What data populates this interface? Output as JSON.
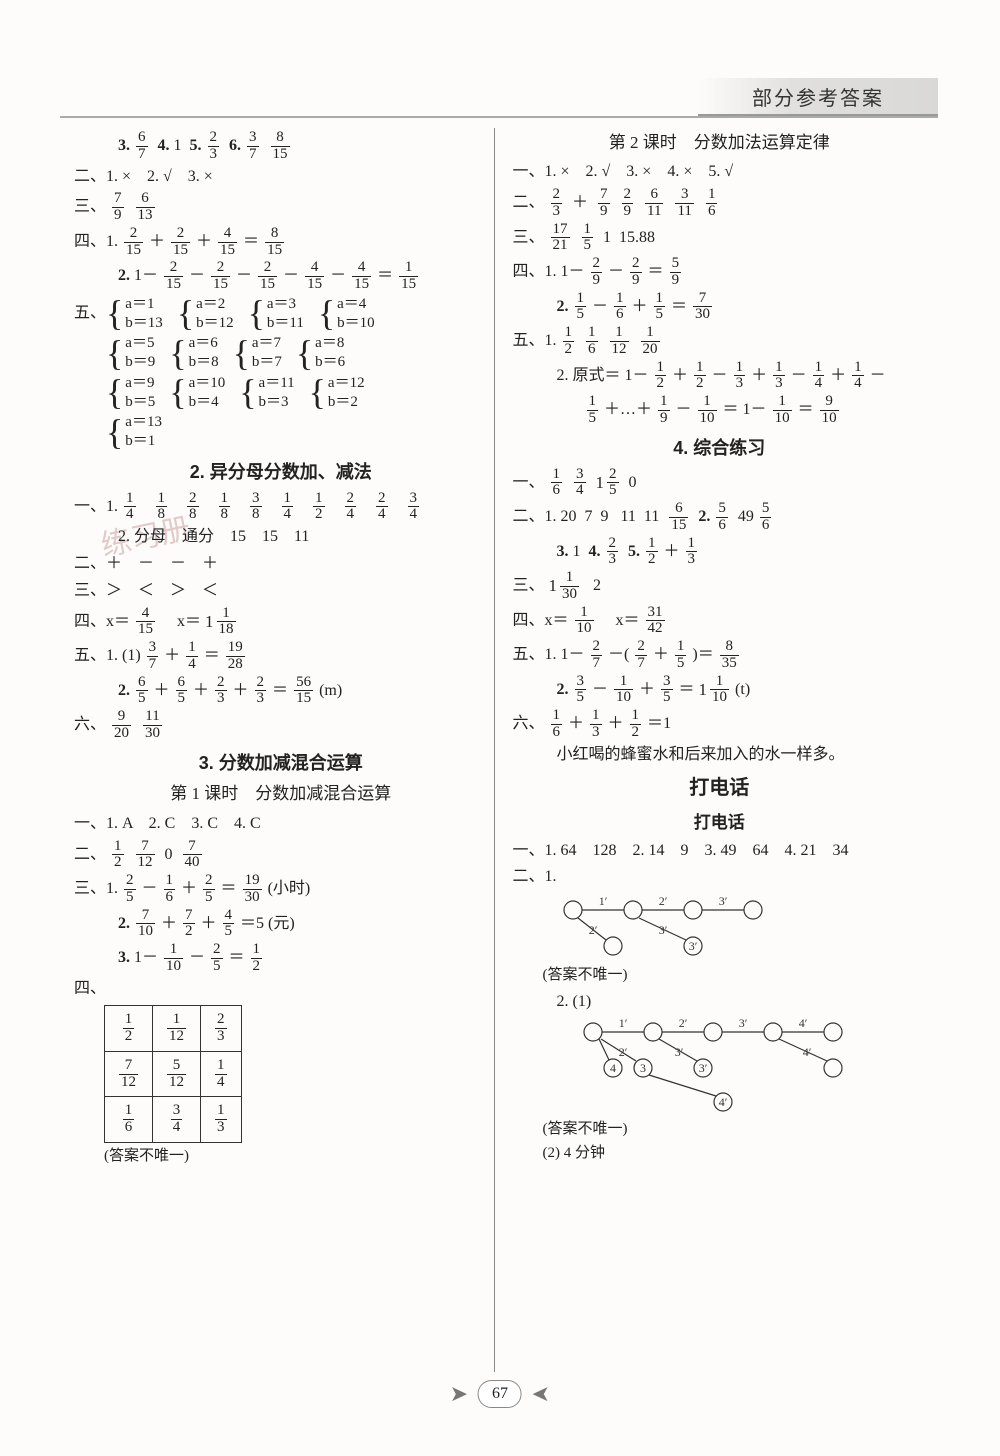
{
  "header_title": "部分参考答案",
  "page_number": "67",
  "watermark_text": "练习册",
  "left": {
    "l1_parts": [
      "3.",
      "6",
      "7",
      "4.",
      "1",
      "5.",
      "2",
      "3",
      "6.",
      "3",
      "7",
      "8",
      "15"
    ],
    "l2": "二、1. ×　2. √　3. ×",
    "l3": [
      "三、",
      "7",
      "9",
      "6",
      "13"
    ],
    "l4": [
      "四、1.",
      "2",
      "15",
      "＋",
      "2",
      "15",
      "＋",
      "4",
      "15",
      "＝",
      "8",
      "15"
    ],
    "l5": [
      "2.",
      "1",
      "－",
      "2",
      "15",
      "－",
      "2",
      "15",
      "－",
      "2",
      "15",
      "－",
      "4",
      "15",
      "－",
      "4",
      "15",
      "＝",
      "1",
      "15"
    ],
    "sec5_label": "五、",
    "pairs": [
      [
        [
          "a＝1",
          "b＝13"
        ],
        [
          "a＝2",
          "b＝12"
        ],
        [
          "a＝3",
          "b＝11"
        ],
        [
          "a＝4",
          "b＝10"
        ]
      ],
      [
        [
          "a＝5",
          "b＝9"
        ],
        [
          "a＝6",
          "b＝8"
        ],
        [
          "a＝7",
          "b＝7"
        ],
        [
          "a＝8",
          "b＝6"
        ]
      ],
      [
        [
          "a＝9",
          "b＝5"
        ],
        [
          "a＝10",
          "b＝4"
        ],
        [
          "a＝11",
          "b＝3"
        ],
        [
          "a＝12",
          "b＝2"
        ]
      ],
      [
        [
          "a＝13",
          "b＝1"
        ]
      ]
    ],
    "title2": "2. 异分母分数加、减法",
    "l2_1_fracs": [
      [
        "1",
        "4"
      ],
      [
        "1",
        "8"
      ],
      [
        "2",
        "8"
      ],
      [
        "1",
        "8"
      ],
      [
        "3",
        "8"
      ],
      [
        "1",
        "4"
      ],
      [
        "1",
        "2"
      ],
      [
        "2",
        "4"
      ],
      [
        "2",
        "4"
      ],
      [
        "3",
        "4"
      ]
    ],
    "l2_1_prefix": "一、1.",
    "l2_2": "2. 分母　通分　15　15　11",
    "l2_3": "二、＋　－　－　＋",
    "l2_4": "三、＞　＜　＞　＜",
    "l2_5": [
      "四、x＝",
      "4",
      "15",
      "　x＝",
      "1",
      "1",
      "18"
    ],
    "l2_6": [
      "五、1. (1)",
      "3",
      "7",
      "＋",
      "1",
      "4",
      "＝",
      "19",
      "28"
    ],
    "l2_7": [
      "2.",
      "6",
      "5",
      "＋",
      "6",
      "5",
      "＋",
      "2",
      "3",
      "＋",
      "2",
      "3",
      "＝",
      "56",
      "15",
      "(m)"
    ],
    "l2_8": [
      "六、",
      "9",
      "20",
      "11",
      "30"
    ],
    "title3": "3. 分数加减混合运算",
    "subtitle3_1": "第 1 课时　分数加减混合运算",
    "l3_1": "一、1. A　2. C　3. C　4. C",
    "l3_2": [
      "二、",
      "1",
      "2",
      "7",
      "12",
      "0",
      "7",
      "40"
    ],
    "l3_3": [
      "三、1.",
      "2",
      "5",
      "－",
      "1",
      "6",
      "＋",
      "2",
      "5",
      "＝",
      "19",
      "30",
      "(小时)"
    ],
    "l3_4": [
      "2.",
      "7",
      "10",
      "＋",
      "7",
      "2",
      "＋",
      "4",
      "5",
      "＝",
      "5",
      "(元)"
    ],
    "l3_5": [
      "3.",
      "1",
      "－",
      "1",
      "10",
      "－",
      "2",
      "5",
      "＝",
      "1",
      "2"
    ],
    "sec4_label": "四、",
    "table": {
      "rows": [
        [
          [
            "1",
            "2"
          ],
          [
            "1",
            "12"
          ],
          [
            "2",
            "3"
          ]
        ],
        [
          [
            "7",
            "12"
          ],
          [
            "5",
            "12"
          ],
          [
            "1",
            "4"
          ]
        ],
        [
          [
            "1",
            "6"
          ],
          [
            "3",
            "4"
          ],
          [
            "1",
            "3"
          ]
        ]
      ]
    },
    "table_note": "(答案不唯一)"
  },
  "right": {
    "subtitle": "第 2 课时　分数加法运算定律",
    "r1": "一、1. ×　2. √　3. ×　4. ×　5. √",
    "r2": [
      "二、",
      "2",
      "3",
      "＋",
      "7",
      "9",
      "2",
      "9",
      "6",
      "11",
      "3",
      "11",
      "1",
      "6"
    ],
    "r3": [
      "三、",
      "17",
      "21",
      "1",
      "5",
      "1",
      "15.88"
    ],
    "r4_1": [
      "四、1.",
      "1",
      "－",
      "2",
      "9",
      "－",
      "2",
      "9",
      "＝",
      "5",
      "9"
    ],
    "r4_2": [
      "2.",
      "1",
      "5",
      "－",
      "1",
      "6",
      "＋",
      "1",
      "5",
      "＝",
      "7",
      "30"
    ],
    "r5_1": [
      "五、1.",
      "1",
      "2",
      "1",
      "6",
      "1",
      "12",
      "1",
      "20"
    ],
    "r5_2a": [
      "2. 原式＝",
      "1",
      "－",
      "1",
      "2",
      "＋",
      "1",
      "2",
      "－",
      "1",
      "3",
      "＋",
      "1",
      "3",
      "－",
      "1",
      "4",
      "＋",
      "1",
      "4",
      "－"
    ],
    "r5_2b": [
      "1",
      "5",
      "＋…＋",
      "1",
      "9",
      "－",
      "1",
      "10",
      "＝",
      "1",
      "－",
      "1",
      "10",
      "＝",
      "9",
      "10"
    ],
    "title4": "4. 综合练习",
    "r6": [
      "一、",
      "1",
      "6",
      "3",
      "4",
      "1",
      "2",
      "5",
      "0"
    ],
    "r7a": [
      "二、1.",
      "20",
      "7",
      "9",
      "11",
      "11",
      "6",
      "15",
      "2.",
      "5",
      "6",
      "49",
      "5",
      "6"
    ],
    "r7b": [
      "3.",
      "1",
      "4.",
      "2",
      "3",
      "5.",
      "1",
      "2",
      "＋",
      "1",
      "3"
    ],
    "r8": [
      "三、",
      "1",
      "1",
      "30",
      "2"
    ],
    "r9": [
      "四、x＝",
      "1",
      "10",
      "　x＝",
      "31",
      "42"
    ],
    "r10_1": [
      "五、1.",
      "1",
      "－",
      "2",
      "7",
      "－(",
      "2",
      "7",
      "＋",
      "1",
      "5",
      ")＝",
      "8",
      "35"
    ],
    "r10_2": [
      "2.",
      "3",
      "5",
      "－",
      "1",
      "10",
      "＋",
      "3",
      "5",
      "＝",
      "1",
      "1",
      "10",
      "(t)"
    ],
    "r11": [
      "六、",
      "1",
      "6",
      "＋",
      "1",
      "3",
      "＋",
      "1",
      "2",
      "＝",
      "1"
    ],
    "r11_note": "小红喝的蜂蜜水和后来加入的水一样多。",
    "phone_title": "打电话",
    "phone_sub": "打电话",
    "p1": "一、1. 64　128　2. 14　9　3. 49　64　4. 21　34",
    "p2_label": "二、1.",
    "tree1_nodes": [
      "1′",
      "2′",
      "3′",
      "2′",
      "3′",
      "3′"
    ],
    "p2_note": "(答案不唯一)",
    "p3_label": "2. (1)",
    "tree2_nodes": [
      "1′",
      "2′",
      "3′",
      "4′",
      "2′",
      "3′",
      "4′",
      "4",
      "3",
      "3′",
      "4′"
    ],
    "p3_note": "(答案不唯一)",
    "p3_ans": "(2) 4 分钟"
  }
}
